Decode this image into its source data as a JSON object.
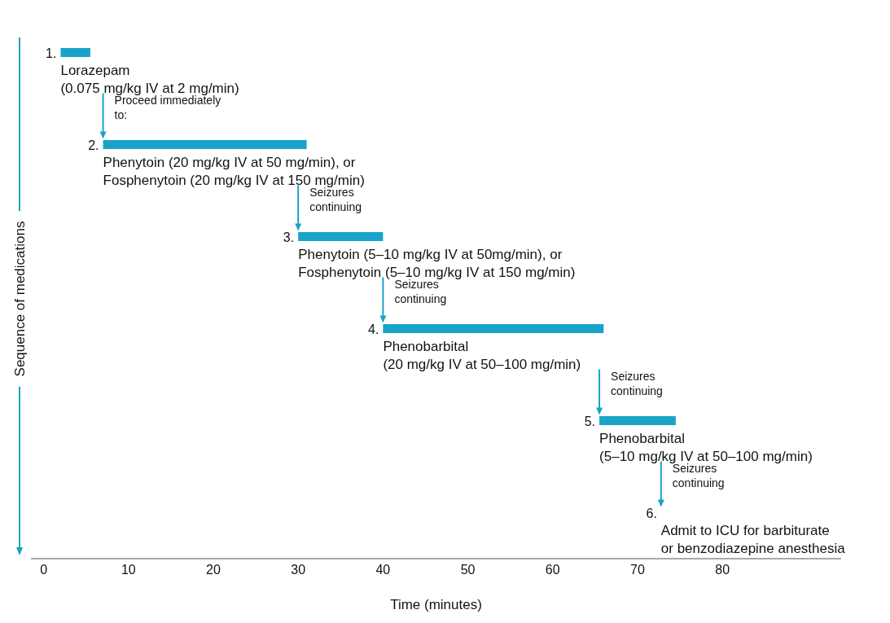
{
  "chart_data": {
    "type": "bar",
    "orientation": "horizontal",
    "xlabel": "Time (minutes)",
    "ylabel": "Sequence of medications",
    "color": "#1aa3c8",
    "categories": [
      null,
      null,
      null,
      null,
      null
    ],
    "base": [
      2,
      7,
      30,
      40,
      65.5
    ],
    "values": [
      3.5,
      24,
      10,
      26,
      9
    ],
    "xlim": [
      -1.5,
      94
    ],
    "xticks": [
      0,
      10,
      20,
      30,
      40,
      50,
      60,
      70,
      80
    ],
    "annotations": [
      {
        "text": "1.",
        "x": 2
      },
      "Lorazepam\n(0.075 mg/kg IV at 2 mg/min)",
      "Proceed immediately\nto:",
      {
        "text": "2.",
        "x": 7
      },
      "Phenytoin (20 mg/kg IV at 50 mg/min), or\nFosphenytoin (20 mg/kg IV at 150 mg/min)",
      "Seizures\ncontinuing",
      {
        "text": "3.",
        "x": 30
      },
      "Phenytoin (5–10 mg/kg IV at 50mg/min), or\nFosphenytoin (5–10 mg/kg IV at 150 mg/min)",
      "Seizures\ncontinuing",
      {
        "text": "4.",
        "x": 40
      },
      "Phenobarbital\n(20 mg/kg IV at 50–100 mg/min)",
      "Seizures\ncontinuing",
      {
        "text": "5.",
        "x": 65.5
      },
      "Phenobarbital\n(5–10 mg/kg IV at 50–100 mg/min)",
      "Seizures\ncontinuing",
      "6.",
      "Admit to ICU for barbiturate\nor benzodiazepine anesthesia"
    ]
  }
}
